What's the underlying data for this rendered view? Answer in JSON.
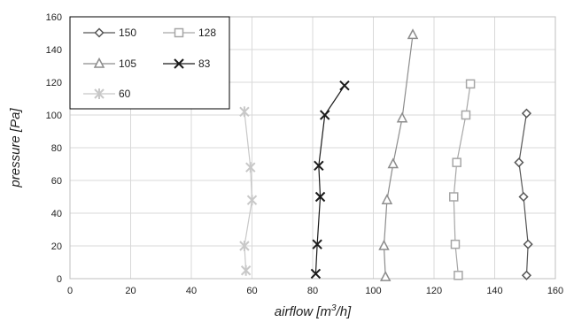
{
  "chart_data": {
    "type": "scatter",
    "xlabel": "airflow [m³/h]",
    "ylabel": "pressure [Pa]",
    "xlim": [
      0,
      160
    ],
    "ylim": [
      0,
      160
    ],
    "x_ticks": [
      0,
      20,
      40,
      60,
      80,
      100,
      120,
      140,
      160
    ],
    "y_ticks": [
      0,
      20,
      40,
      60,
      80,
      100,
      120,
      140,
      160
    ],
    "grid": true,
    "legend_position": "top-left",
    "series": [
      {
        "name": "150",
        "marker": "diamond",
        "color": "#555555",
        "points": [
          [
            150.5,
            2
          ],
          [
            151,
            21
          ],
          [
            149.5,
            50
          ],
          [
            148,
            71
          ],
          [
            150.5,
            101
          ]
        ]
      },
      {
        "name": "128",
        "marker": "square",
        "color": "#a6a6a6",
        "points": [
          [
            128,
            2
          ],
          [
            127,
            21
          ],
          [
            126.5,
            50
          ],
          [
            127.5,
            71
          ],
          [
            130.5,
            100
          ],
          [
            132,
            119
          ]
        ]
      },
      {
        "name": "105",
        "marker": "triangle",
        "color": "#8c8c8c",
        "points": [
          [
            104,
            1
          ],
          [
            103.5,
            20
          ],
          [
            104.5,
            48
          ],
          [
            106.5,
            70
          ],
          [
            109.5,
            98
          ],
          [
            113,
            149
          ]
        ]
      },
      {
        "name": "83",
        "marker": "x",
        "color": "#1a1a1a",
        "points": [
          [
            81,
            3
          ],
          [
            81.5,
            21
          ],
          [
            82.5,
            50
          ],
          [
            82,
            69
          ],
          [
            84,
            100
          ],
          [
            90.5,
            118
          ]
        ]
      },
      {
        "name": "60",
        "marker": "asterisk",
        "color": "#c8c8c8",
        "points": [
          [
            58,
            5
          ],
          [
            57.5,
            20
          ],
          [
            60,
            48
          ],
          [
            59.5,
            68
          ],
          [
            57.5,
            102
          ]
        ]
      }
    ]
  }
}
